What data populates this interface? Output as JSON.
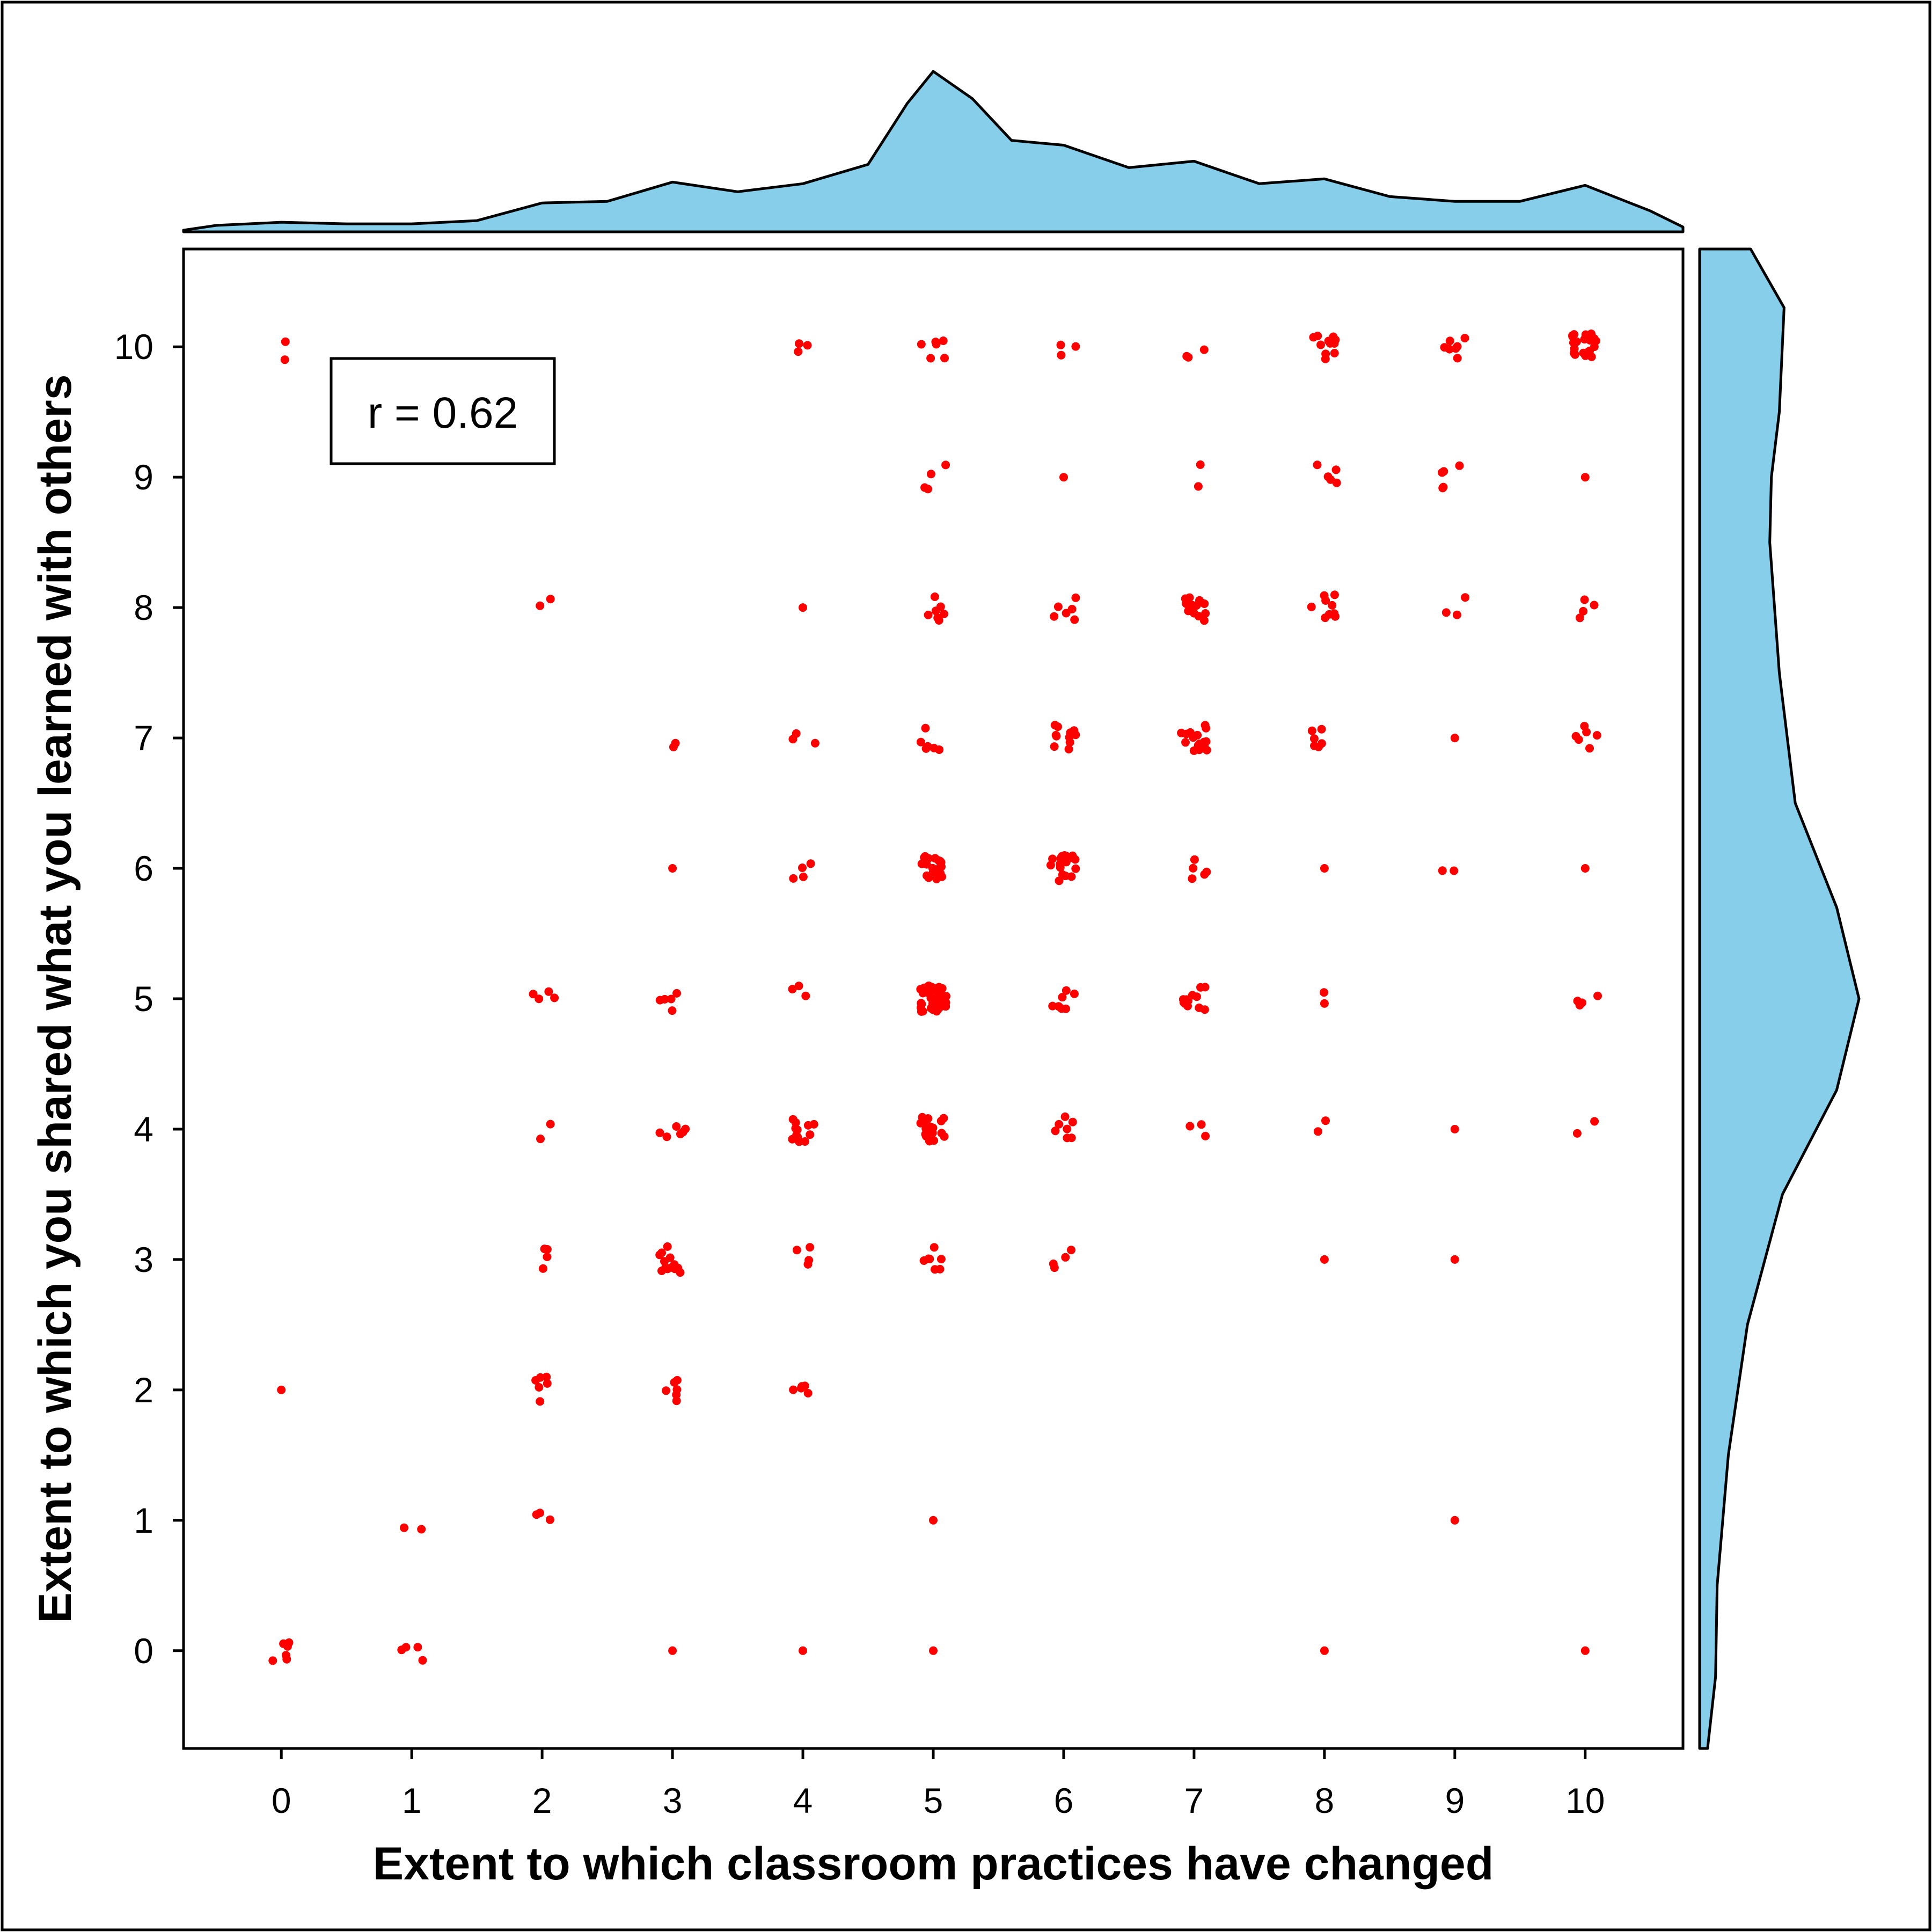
{
  "chart_data": {
    "type": "scatter",
    "xlabel": "Extent to which classroom practices have changed",
    "ylabel": "Extent to which you shared what you learned with others",
    "xlim": [
      -0.75,
      10.75
    ],
    "ylim": [
      -0.75,
      10.75
    ],
    "x_ticks": [
      "0",
      "1",
      "2",
      "3",
      "4",
      "5",
      "6",
      "7",
      "8",
      "9",
      "10"
    ],
    "y_ticks": [
      "0",
      "1",
      "2",
      "3",
      "4",
      "5",
      "6",
      "7",
      "8",
      "9",
      "10"
    ],
    "annotation": "r = 0.62",
    "point_color": "#ff0000",
    "density_fill": "#87ceeb",
    "marginal_x_density": [
      [
        -0.75,
        0.01
      ],
      [
        -0.5,
        0.04
      ],
      [
        0,
        0.06
      ],
      [
        0.5,
        0.05
      ],
      [
        1,
        0.05
      ],
      [
        1.5,
        0.07
      ],
      [
        2,
        0.18
      ],
      [
        2.5,
        0.19
      ],
      [
        3,
        0.31
      ],
      [
        3.5,
        0.25
      ],
      [
        4,
        0.3
      ],
      [
        4.5,
        0.42
      ],
      [
        4.8,
        0.8
      ],
      [
        5,
        1
      ],
      [
        5.3,
        0.83
      ],
      [
        5.6,
        0.57
      ],
      [
        6,
        0.54
      ],
      [
        6.5,
        0.4
      ],
      [
        7,
        0.44
      ],
      [
        7.5,
        0.3
      ],
      [
        8,
        0.33
      ],
      [
        8.5,
        0.22
      ],
      [
        9,
        0.19
      ],
      [
        9.5,
        0.19
      ],
      [
        10,
        0.29
      ],
      [
        10.5,
        0.13
      ],
      [
        10.75,
        0.03
      ]
    ],
    "marginal_y_density": [
      [
        -0.75,
        0.05
      ],
      [
        -0.2,
        0.1
      ],
      [
        0.5,
        0.11
      ],
      [
        1.5,
        0.18
      ],
      [
        2.5,
        0.3
      ],
      [
        3.5,
        0.52
      ],
      [
        4.3,
        0.86
      ],
      [
        5,
        1
      ],
      [
        5.7,
        0.86
      ],
      [
        6.5,
        0.6
      ],
      [
        7.5,
        0.5
      ],
      [
        8.5,
        0.44
      ],
      [
        9,
        0.45
      ],
      [
        9.5,
        0.5
      ],
      [
        10.3,
        0.53
      ],
      [
        10.75,
        0.32
      ]
    ],
    "points": [
      [
        0,
        10,
        2
      ],
      [
        0,
        2,
        1
      ],
      [
        0,
        0,
        6
      ],
      [
        1,
        1,
        2
      ],
      [
        1,
        0,
        4
      ],
      [
        2,
        8,
        2
      ],
      [
        2,
        5,
        4
      ],
      [
        2,
        4,
        2
      ],
      [
        2,
        3,
        4
      ],
      [
        2,
        2,
        6
      ],
      [
        2,
        1,
        3
      ],
      [
        3,
        7,
        2
      ],
      [
        3,
        6,
        1
      ],
      [
        3,
        5,
        5
      ],
      [
        3,
        4,
        6
      ],
      [
        3,
        3,
        14
      ],
      [
        3,
        2,
        6
      ],
      [
        3,
        0,
        1
      ],
      [
        4,
        10,
        3
      ],
      [
        4,
        8,
        1
      ],
      [
        4,
        7,
        3
      ],
      [
        4,
        6,
        4
      ],
      [
        4,
        5,
        3
      ],
      [
        4,
        4,
        12
      ],
      [
        4,
        3,
        4
      ],
      [
        4,
        2,
        5
      ],
      [
        4,
        0,
        1
      ],
      [
        5,
        10,
        6
      ],
      [
        5,
        9,
        4
      ],
      [
        5,
        8,
        7
      ],
      [
        5,
        7,
        6
      ],
      [
        5,
        6,
        20
      ],
      [
        5,
        5,
        45
      ],
      [
        5,
        4,
        18
      ],
      [
        5,
        3,
        7
      ],
      [
        5,
        1,
        1
      ],
      [
        5,
        0,
        1
      ],
      [
        6,
        10,
        3
      ],
      [
        6,
        9,
        1
      ],
      [
        6,
        8,
        6
      ],
      [
        6,
        7,
        12
      ],
      [
        6,
        6,
        18
      ],
      [
        6,
        5,
        7
      ],
      [
        6,
        4,
        7
      ],
      [
        6,
        3,
        4
      ],
      [
        7,
        10,
        3
      ],
      [
        7,
        9,
        2
      ],
      [
        7,
        8,
        14
      ],
      [
        7,
        7,
        16
      ],
      [
        7,
        6,
        5
      ],
      [
        7,
        5,
        12
      ],
      [
        7,
        4,
        3
      ],
      [
        8,
        10,
        12
      ],
      [
        8,
        9,
        5
      ],
      [
        8,
        8,
        9
      ],
      [
        8,
        7,
        6
      ],
      [
        8,
        6,
        1
      ],
      [
        8,
        5,
        2
      ],
      [
        8,
        4,
        2
      ],
      [
        8,
        3,
        1
      ],
      [
        8,
        0,
        1
      ],
      [
        9,
        10,
        7
      ],
      [
        9,
        9,
        5
      ],
      [
        9,
        8,
        3
      ],
      [
        9,
        7,
        1
      ],
      [
        9,
        6,
        2
      ],
      [
        9,
        4,
        1
      ],
      [
        9,
        3,
        1
      ],
      [
        9,
        1,
        1
      ],
      [
        10,
        10,
        22
      ],
      [
        10,
        9,
        1
      ],
      [
        10,
        8,
        4
      ],
      [
        10,
        7,
        6
      ],
      [
        10,
        6,
        1
      ],
      [
        10,
        5,
        4
      ],
      [
        10,
        4,
        2
      ],
      [
        10,
        0,
        1
      ]
    ]
  }
}
